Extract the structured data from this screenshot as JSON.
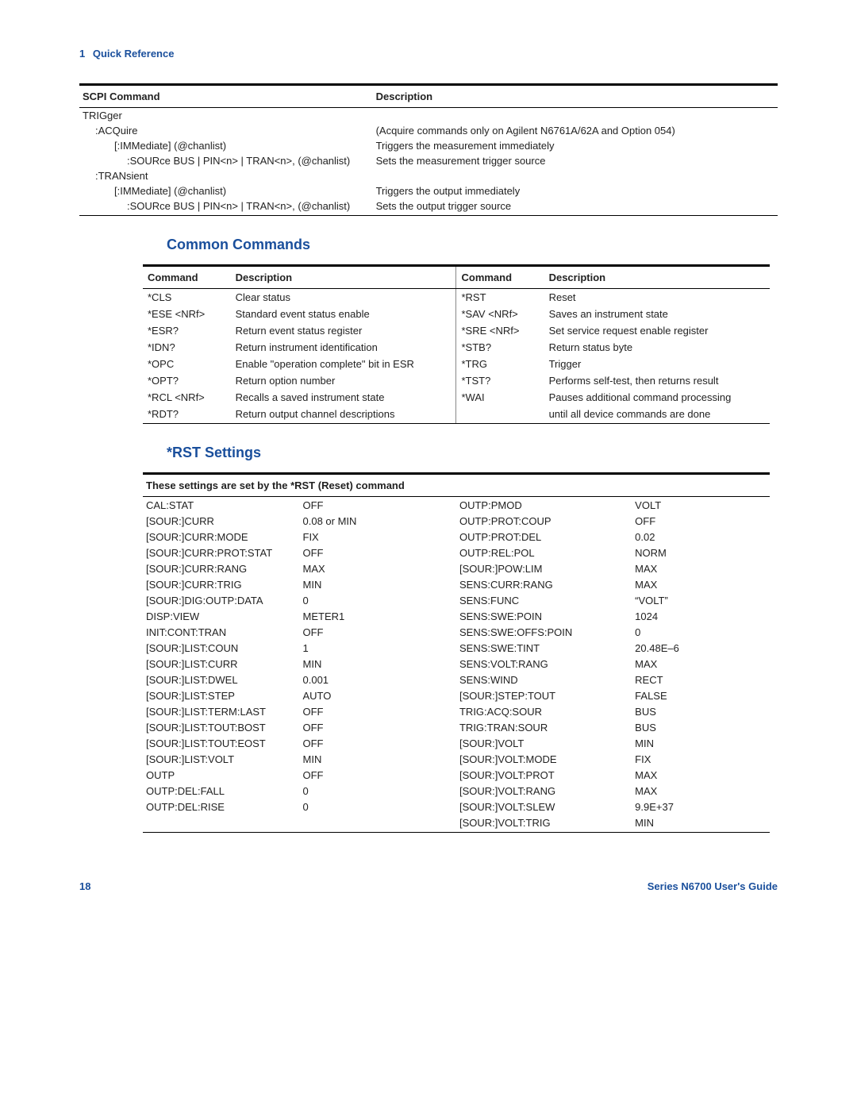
{
  "chapter": {
    "num": "1",
    "title": "Quick Reference"
  },
  "footer": {
    "page": "18",
    "doc": "Series N6700 User's Guide"
  },
  "sections": {
    "common": "Common Commands",
    "rst": "*RST Settings"
  },
  "table1": {
    "h1": "SCPI Command",
    "h2": "Description",
    "rows": [
      {
        "c": "TRIGger",
        "d": "",
        "ind": 0
      },
      {
        "c": ":ACQuire",
        "d": "(Acquire commands only on Agilent N6761A/62A and Option 054)",
        "ind": 1
      },
      {
        "c": "[:IMMediate] (@chanlist)",
        "d": "Triggers the measurement immediately",
        "ind": 2
      },
      {
        "c": ":SOURce BUS | PIN<n> | TRAN<n>, (@chanlist)",
        "d": "Sets the measurement trigger source",
        "ind": 3
      },
      {
        "c": ":TRANsient",
        "d": "",
        "ind": 1
      },
      {
        "c": "[:IMMediate] (@chanlist)",
        "d": "Triggers the output immediately",
        "ind": 2
      },
      {
        "c": ":SOURce BUS | PIN<n> | TRAN<n>, (@chanlist)",
        "d": "Sets the output trigger source",
        "ind": 3
      }
    ]
  },
  "table2": {
    "h1": "Command",
    "h2": "Description",
    "rows": [
      {
        "a": "*CLS",
        "b": "Clear status",
        "c": "*RST",
        "d": "Reset"
      },
      {
        "a": "*ESE <NRf>",
        "b": "Standard event status enable",
        "c": "*SAV <NRf>",
        "d": "Saves an instrument state"
      },
      {
        "a": "*ESR?",
        "b": "Return event status register",
        "c": "*SRE <NRf>",
        "d": "Set service request enable register"
      },
      {
        "a": "*IDN?",
        "b": "Return instrument identification",
        "c": "*STB?",
        "d": "Return status byte"
      },
      {
        "a": "*OPC",
        "b": "Enable \"operation complete\" bit in ESR",
        "c": "*TRG",
        "d": "Trigger"
      },
      {
        "a": "*OPT?",
        "b": "Return option number",
        "c": "*TST?",
        "d": "Performs self-test, then returns result"
      },
      {
        "a": "*RCL <NRf>",
        "b": "Recalls a saved instrument state",
        "c": "*WAI",
        "d": "Pauses additional command processing"
      },
      {
        "a": "*RDT?",
        "b": "Return output channel descriptions",
        "c": "",
        "d": "until all device commands are done"
      }
    ]
  },
  "table3": {
    "header": "These settings are set by the *RST (Reset) command",
    "rows": [
      {
        "a": "CAL:STAT",
        "b": "OFF",
        "c": "OUTP:PMOD",
        "d": "VOLT"
      },
      {
        "a": "[SOUR:]CURR",
        "b": "0.08 or MIN",
        "c": "OUTP:PROT:COUP",
        "d": "OFF"
      },
      {
        "a": "[SOUR:]CURR:MODE",
        "b": "FIX",
        "c": "OUTP:PROT:DEL",
        "d": "0.02"
      },
      {
        "a": "[SOUR:]CURR:PROT:STAT",
        "b": "OFF",
        "c": "OUTP:REL:POL",
        "d": "NORM"
      },
      {
        "a": "[SOUR:]CURR:RANG",
        "b": "MAX",
        "c": "[SOUR:]POW:LIM",
        "d": "MAX"
      },
      {
        "a": "[SOUR:]CURR:TRIG",
        "b": "MIN",
        "c": "SENS:CURR:RANG",
        "d": "MAX"
      },
      {
        "a": "[SOUR:]DIG:OUTP:DATA",
        "b": "0",
        "c": "SENS:FUNC",
        "d": "“VOLT”"
      },
      {
        "a": "DISP:VIEW",
        "b": "METER1",
        "c": "SENS:SWE:POIN",
        "d": "1024"
      },
      {
        "a": "INIT:CONT:TRAN",
        "b": "OFF",
        "c": "SENS:SWE:OFFS:POIN",
        "d": "0"
      },
      {
        "a": "[SOUR:]LIST:COUN",
        "b": "1",
        "c": "SENS:SWE:TINT",
        "d": "20.48E–6"
      },
      {
        "a": "[SOUR:]LIST:CURR",
        "b": "MIN",
        "c": "SENS:VOLT:RANG",
        "d": "MAX"
      },
      {
        "a": "[SOUR:]LIST:DWEL",
        "b": "0.001",
        "c": "SENS:WIND",
        "d": "RECT"
      },
      {
        "a": "[SOUR:]LIST:STEP",
        "b": "AUTO",
        "c": "[SOUR:]STEP:TOUT",
        "d": "FALSE"
      },
      {
        "a": "[SOUR:]LIST:TERM:LAST",
        "b": "OFF",
        "c": "TRIG:ACQ:SOUR",
        "d": "BUS"
      },
      {
        "a": "[SOUR:]LIST:TOUT:BOST",
        "b": "OFF",
        "c": "TRIG:TRAN:SOUR",
        "d": "BUS"
      },
      {
        "a": "[SOUR:]LIST:TOUT:EOST",
        "b": "OFF",
        "c": "[SOUR:]VOLT",
        "d": "MIN"
      },
      {
        "a": "[SOUR:]LIST:VOLT",
        "b": "MIN",
        "c": "[SOUR:]VOLT:MODE",
        "d": "FIX"
      },
      {
        "a": "OUTP",
        "b": "OFF",
        "c": "[SOUR:]VOLT:PROT",
        "d": "MAX"
      },
      {
        "a": "OUTP:DEL:FALL",
        "b": "0",
        "c": "[SOUR:]VOLT:RANG",
        "d": "MAX"
      },
      {
        "a": "OUTP:DEL:RISE",
        "b": "0",
        "c": "[SOUR:]VOLT:SLEW",
        "d": "9.9E+37"
      },
      {
        "a": "",
        "b": "",
        "c": "[SOUR:]VOLT:TRIG",
        "d": "MIN"
      }
    ]
  }
}
